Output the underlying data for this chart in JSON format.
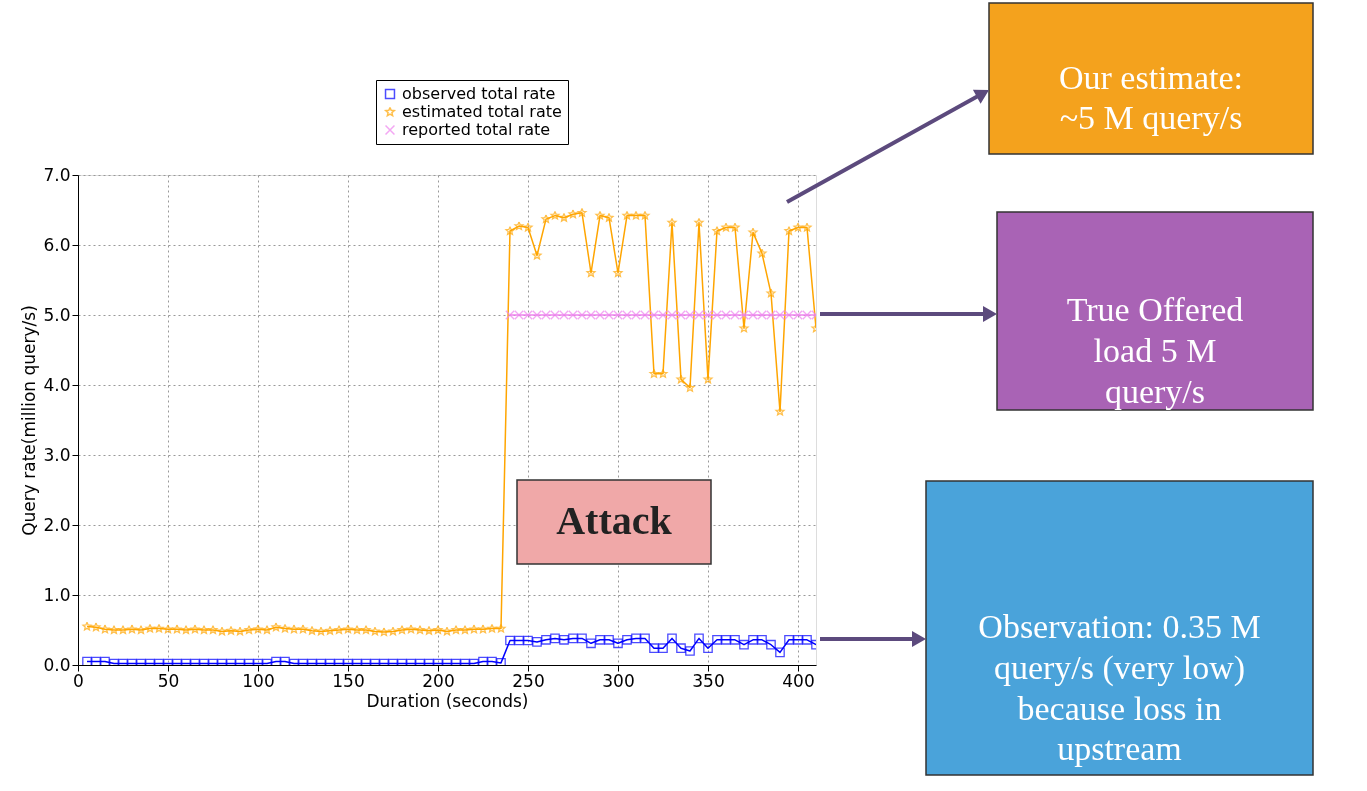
{
  "chart_data": {
    "type": "line",
    "xlabel": "Duration (seconds)",
    "ylabel": "Query rate(million query/s)",
    "xlim": [
      0,
      410
    ],
    "xticks": [
      0,
      50,
      100,
      150,
      200,
      250,
      300,
      350,
      400
    ],
    "ylim": [
      0,
      7
    ],
    "yticks": [
      {
        "value": 0,
        "label": "0.0"
      },
      {
        "value": 1,
        "label": "1.0"
      },
      {
        "value": 2,
        "label": "2.0"
      },
      {
        "value": 3,
        "label": "3.0"
      },
      {
        "value": 4,
        "label": "4.0"
      },
      {
        "value": 5,
        "label": "5.0"
      },
      {
        "value": 6,
        "label": "6.0"
      },
      {
        "value": 7,
        "label": "7.0"
      }
    ],
    "grid": true,
    "legend": "top right",
    "series": [
      {
        "name": "observed total rate",
        "color": "#0000ff",
        "marker": "square",
        "x": [
          5,
          10,
          15,
          20,
          25,
          30,
          35,
          40,
          45,
          50,
          55,
          60,
          65,
          70,
          75,
          80,
          85,
          90,
          95,
          100,
          105,
          110,
          115,
          120,
          125,
          130,
          135,
          140,
          145,
          150,
          155,
          160,
          165,
          170,
          175,
          180,
          185,
          190,
          195,
          200,
          205,
          210,
          215,
          220,
          225,
          230,
          235,
          240,
          245,
          250,
          255,
          260,
          265,
          270,
          275,
          280,
          285,
          290,
          295,
          300,
          305,
          310,
          315,
          320,
          325,
          330,
          335,
          340,
          345,
          350,
          355,
          360,
          365,
          370,
          375,
          380,
          385,
          390,
          395,
          400,
          405,
          410
        ],
        "values": [
          0.05,
          0.05,
          0.05,
          0.02,
          0.02,
          0.02,
          0.02,
          0.02,
          0.02,
          0.02,
          0.02,
          0.02,
          0.02,
          0.02,
          0.02,
          0.02,
          0.02,
          0.02,
          0.02,
          0.02,
          0.02,
          0.05,
          0.05,
          0.02,
          0.02,
          0.02,
          0.02,
          0.02,
          0.02,
          0.02,
          0.02,
          0.02,
          0.02,
          0.02,
          0.02,
          0.02,
          0.02,
          0.02,
          0.02,
          0.02,
          0.02,
          0.02,
          0.02,
          0.02,
          0.05,
          0.05,
          0.03,
          0.35,
          0.35,
          0.35,
          0.33,
          0.36,
          0.38,
          0.36,
          0.38,
          0.38,
          0.31,
          0.36,
          0.36,
          0.31,
          0.36,
          0.38,
          0.38,
          0.24,
          0.24,
          0.38,
          0.24,
          0.2,
          0.38,
          0.24,
          0.36,
          0.36,
          0.36,
          0.29,
          0.36,
          0.36,
          0.29,
          0.18,
          0.36,
          0.36,
          0.36,
          0.29
        ]
      },
      {
        "name": "estimated total rate",
        "color": "#ffa500",
        "marker": "star",
        "x": [
          5,
          10,
          15,
          20,
          25,
          30,
          35,
          40,
          45,
          50,
          55,
          60,
          65,
          70,
          75,
          80,
          85,
          90,
          95,
          100,
          105,
          110,
          115,
          120,
          125,
          130,
          135,
          140,
          145,
          150,
          155,
          160,
          165,
          170,
          175,
          180,
          185,
          190,
          195,
          200,
          205,
          210,
          215,
          220,
          225,
          230,
          235,
          240,
          245,
          250,
          255,
          260,
          265,
          270,
          275,
          280,
          285,
          290,
          295,
          300,
          305,
          310,
          315,
          320,
          325,
          330,
          335,
          340,
          345,
          350,
          355,
          360,
          365,
          370,
          375,
          380,
          385,
          390,
          395,
          400,
          405,
          410
        ],
        "values": [
          0.55,
          0.54,
          0.51,
          0.5,
          0.5,
          0.51,
          0.5,
          0.52,
          0.52,
          0.51,
          0.51,
          0.5,
          0.51,
          0.5,
          0.5,
          0.48,
          0.49,
          0.48,
          0.5,
          0.51,
          0.5,
          0.54,
          0.52,
          0.51,
          0.51,
          0.49,
          0.48,
          0.49,
          0.5,
          0.51,
          0.5,
          0.5,
          0.48,
          0.47,
          0.48,
          0.5,
          0.51,
          0.5,
          0.49,
          0.5,
          0.48,
          0.5,
          0.5,
          0.51,
          0.51,
          0.52,
          0.52,
          6.2,
          6.27,
          6.25,
          5.85,
          6.37,
          6.42,
          6.39,
          6.44,
          6.46,
          5.6,
          6.42,
          6.39,
          5.6,
          6.42,
          6.42,
          6.42,
          4.16,
          4.16,
          6.32,
          4.08,
          3.96,
          6.32,
          4.08,
          6.2,
          6.25,
          6.25,
          4.81,
          6.18,
          5.88,
          5.31,
          3.62,
          6.2,
          6.25,
          6.25,
          4.81
        ]
      },
      {
        "name": "reported total rate",
        "color": "#ee82ee",
        "marker": "cross",
        "x": [
          240,
          245,
          250,
          255,
          260,
          265,
          270,
          275,
          280,
          285,
          290,
          295,
          300,
          305,
          310,
          315,
          320,
          325,
          330,
          335,
          340,
          345,
          350,
          355,
          360,
          365,
          370,
          375,
          380,
          385,
          390,
          395,
          400,
          405,
          410
        ],
        "values": [
          5,
          5,
          5,
          5,
          5,
          5,
          5,
          5,
          5,
          5,
          5,
          5,
          5,
          5,
          5,
          5,
          5,
          5,
          5,
          5,
          5,
          5,
          5,
          5,
          5,
          5,
          5,
          5,
          5,
          5,
          5,
          5,
          5,
          5,
          5
        ]
      }
    ],
    "annotations": [
      "Our estimate: ~5 M query/s",
      "True Offered load 5 M query/s",
      "Observation: 0.35 M query/s (very low) because loss in upstream",
      "Attack"
    ]
  }
}
